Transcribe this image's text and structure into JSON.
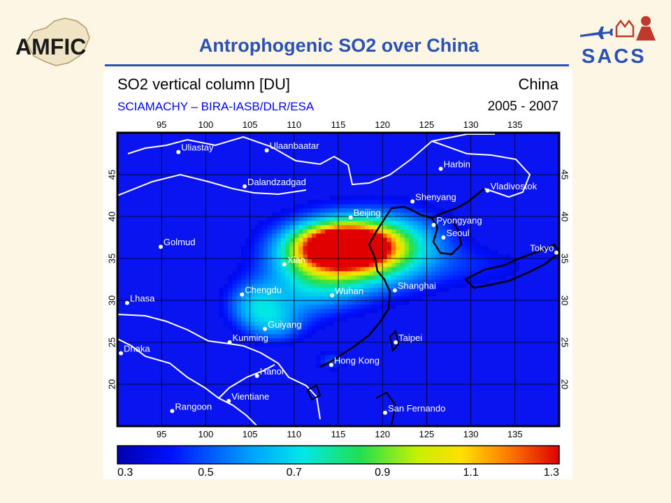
{
  "slide": {
    "title": "Antrophogenic SO2 over China",
    "logo_left": "AMFIC",
    "logo_right": "SACS",
    "accent": "#2a52b4",
    "background": "#fdf6e4"
  },
  "figure": {
    "title": "SO2 vertical column [DU]",
    "subtitle": "SCIAMACHY  –  BIRA-IASB/DLR/ESA",
    "region": "China",
    "period": "2005 - 2007",
    "lon_ticks": [
      95,
      100,
      105,
      110,
      115,
      120,
      125,
      130,
      135
    ],
    "lat_ticks": [
      45,
      40,
      35,
      30,
      25,
      20
    ],
    "lon_range": [
      90,
      140
    ],
    "lat_range": [
      15,
      50
    ],
    "colorbar": {
      "min": 0.3,
      "max": 1.3,
      "tick_labels": [
        "0.3",
        "0.5",
        "0.7",
        "0.9",
        "1.1",
        "1.3"
      ]
    },
    "cities": [
      {
        "name": "Uliastay",
        "lon": 96.9,
        "lat": 47.7
      },
      {
        "name": "Ulaanbaatar",
        "lon": 106.9,
        "lat": 47.9
      },
      {
        "name": "Harbin",
        "lon": 126.6,
        "lat": 45.7
      },
      {
        "name": "Dalandzadgad",
        "lon": 104.4,
        "lat": 43.6
      },
      {
        "name": "Vladivostok",
        "lon": 131.9,
        "lat": 43.1
      },
      {
        "name": "Shenyang",
        "lon": 123.4,
        "lat": 41.8
      },
      {
        "name": "Beijing",
        "lon": 116.4,
        "lat": 39.9
      },
      {
        "name": "Pyongyang",
        "lon": 125.8,
        "lat": 39.0
      },
      {
        "name": "Seoul",
        "lon": 126.9,
        "lat": 37.5
      },
      {
        "name": "Golmud",
        "lon": 94.9,
        "lat": 36.4
      },
      {
        "name": "Tokyo",
        "lon": 139.7,
        "lat": 35.7
      },
      {
        "name": "Xian",
        "lon": 108.9,
        "lat": 34.3
      },
      {
        "name": "Shanghai",
        "lon": 121.4,
        "lat": 31.2
      },
      {
        "name": "Wuhan",
        "lon": 114.3,
        "lat": 30.6
      },
      {
        "name": "Chengdu",
        "lon": 104.1,
        "lat": 30.7
      },
      {
        "name": "Lhasa",
        "lon": 91.1,
        "lat": 29.7
      },
      {
        "name": "Guiyang",
        "lon": 106.7,
        "lat": 26.6
      },
      {
        "name": "Kunming",
        "lon": 102.7,
        "lat": 25.0
      },
      {
        "name": "Taipei",
        "lon": 121.5,
        "lat": 25.0
      },
      {
        "name": "Dhaka",
        "lon": 90.4,
        "lat": 23.7
      },
      {
        "name": "Hong Kong",
        "lon": 114.2,
        "lat": 22.3
      },
      {
        "name": "Hanoi",
        "lon": 105.8,
        "lat": 21.0
      },
      {
        "name": "Vientiane",
        "lon": 102.6,
        "lat": 18.0
      },
      {
        "name": "Rangoon",
        "lon": 96.2,
        "lat": 16.8
      },
      {
        "name": "San Fernando",
        "lon": 120.3,
        "lat": 16.6
      }
    ],
    "so2_field": [
      {
        "lon": 116,
        "lat": 36.5,
        "peak": 1.0,
        "rx": 4.5,
        "ry": 2.2
      },
      {
        "lon": 114.5,
        "lat": 35.8,
        "peak": 0.5,
        "rx": 6,
        "ry": 3.4
      },
      {
        "lon": 117,
        "lat": 35.5,
        "peak": 0.4,
        "rx": 9,
        "ry": 5
      },
      {
        "lon": 122,
        "lat": 37.0,
        "peak": 0.2,
        "rx": 6,
        "ry": 4
      },
      {
        "lon": 105.5,
        "lat": 29.5,
        "peak": 0.3,
        "rx": 3.5,
        "ry": 3
      },
      {
        "lon": 108,
        "lat": 27,
        "peak": 0.22,
        "rx": 3.5,
        "ry": 2.5
      },
      {
        "lon": 112,
        "lat": 31,
        "peak": 0.2,
        "rx": 5,
        "ry": 3.5
      },
      {
        "lon": 114.3,
        "lat": 22.8,
        "peak": 0.18,
        "rx": 2.2,
        "ry": 1.2
      },
      {
        "lon": 132,
        "lat": 34,
        "peak": 0.1,
        "rx": 6,
        "ry": 2.5
      }
    ]
  }
}
